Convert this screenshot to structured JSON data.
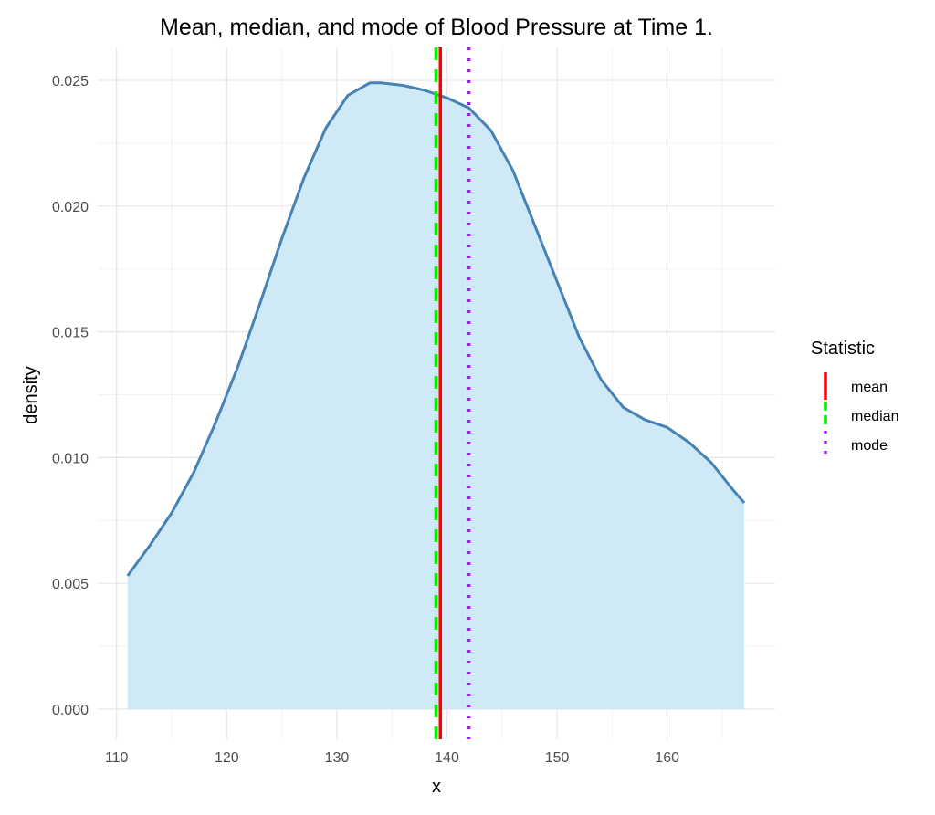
{
  "chart_data": {
    "type": "area",
    "title": "Mean, median, and mode of Blood Pressure at Time 1.",
    "xlabel": "x",
    "ylabel": "density",
    "xlim": [
      108,
      169
    ],
    "ylim": [
      -0.0012,
      0.0262
    ],
    "x_ticks": [
      110,
      120,
      130,
      140,
      150,
      160
    ],
    "y_ticks": [
      0.0,
      0.005,
      0.01,
      0.015,
      0.02,
      0.025
    ],
    "y_tick_labels": [
      "0.000",
      "0.005",
      "0.010",
      "0.015",
      "0.020",
      "0.025"
    ],
    "grid": true,
    "density": {
      "x": [
        111,
        113,
        115,
        117,
        119,
        121,
        123,
        125,
        127,
        129,
        131,
        133,
        134,
        136,
        138,
        140,
        142,
        144,
        146,
        148,
        150,
        152,
        154,
        156,
        158,
        160,
        162,
        164,
        166,
        167
      ],
      "y": [
        0.0053,
        0.0065,
        0.0078,
        0.0094,
        0.0114,
        0.0136,
        0.0161,
        0.0187,
        0.0211,
        0.0231,
        0.0244,
        0.0249,
        0.0249,
        0.0248,
        0.0246,
        0.0243,
        0.0239,
        0.023,
        0.0214,
        0.0192,
        0.017,
        0.0148,
        0.0131,
        0.012,
        0.0115,
        0.0112,
        0.0106,
        0.0098,
        0.0087,
        0.0082
      ],
      "fill": "#cfe9f6",
      "line_color": "#4682b4"
    },
    "legend": {
      "title": "Statistic",
      "placement": "right",
      "entries": [
        {
          "name": "mean",
          "value": 139.4,
          "color": "#ff0000",
          "dash": "solid"
        },
        {
          "name": "median",
          "value": 139.0,
          "color": "#00ee00",
          "dash": "dashed"
        },
        {
          "name": "mode",
          "value": 142.0,
          "color": "#a020f0",
          "dash": "dotted"
        }
      ]
    }
  }
}
